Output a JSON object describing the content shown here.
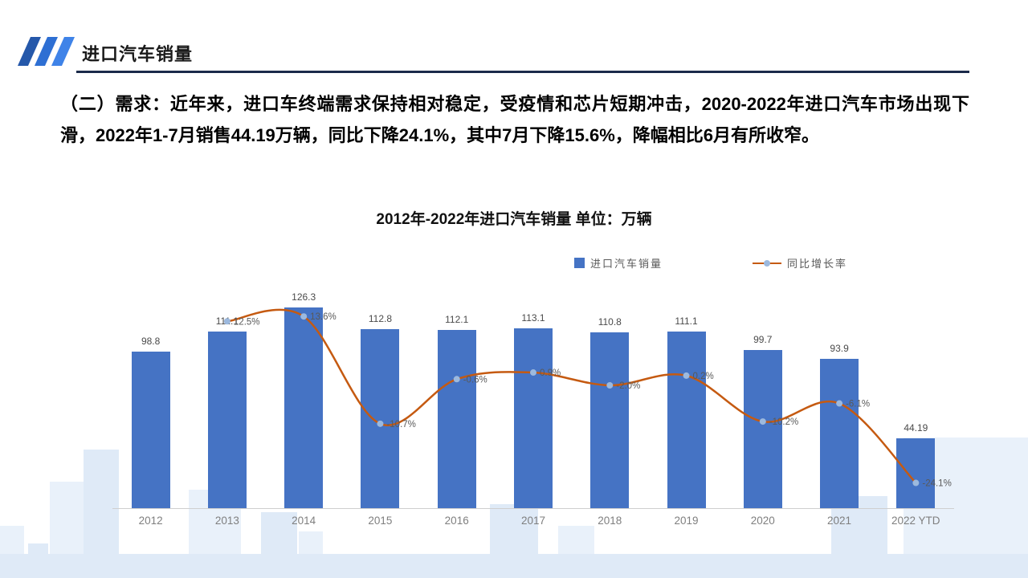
{
  "slide": {
    "header_title": "进口汽车销量",
    "body_text": "（二）需求：近年来，进口车终端需求保持相对稳定，受疫情和芯片短期冲击，2020-2022年进口汽车市场出现下滑，2022年1-7月销售44.19万辆，同比下降24.1%，其中7月下降15.6%，降幅相比6月有所收窄。"
  },
  "chart_data": {
    "type": "combo",
    "title": "2012年-2022年进口汽车销量 单位：万辆",
    "categories": [
      "2012",
      "2013",
      "2014",
      "2015",
      "2016",
      "2017",
      "2018",
      "2019",
      "2020",
      "2021",
      "2022 YTD"
    ],
    "series": [
      {
        "name": "进口汽车销量",
        "type": "bar",
        "color": "#4573C4",
        "values": [
          98.8,
          111.1,
          126.3,
          112.8,
          112.1,
          113.1,
          110.8,
          111.1,
          99.7,
          93.9,
          44.19
        ],
        "labels": [
          "98.8",
          "111.1",
          "126.3",
          "112.8",
          "112.1",
          "113.1",
          "110.8",
          "111.1",
          "99.7",
          "93.9",
          "44.19"
        ]
      },
      {
        "name": "同比增长率",
        "type": "line",
        "color": "#C55A11",
        "marker_color": "#9CB9DE",
        "values": [
          null,
          12.5,
          13.6,
          -10.7,
          -0.6,
          0.9,
          -2.0,
          0.2,
          -10.2,
          -6.1,
          -24.1
        ],
        "labels": [
          null,
          "12.5%",
          "13.6%",
          "-10.7%",
          "-0.6%",
          "0.9%",
          "-2.0%",
          "0.2%",
          "-10.2%",
          "-6.1%",
          "-24.1%"
        ]
      }
    ],
    "bar_axis_max": 140,
    "legend_position": "top-right",
    "grid": "off"
  }
}
